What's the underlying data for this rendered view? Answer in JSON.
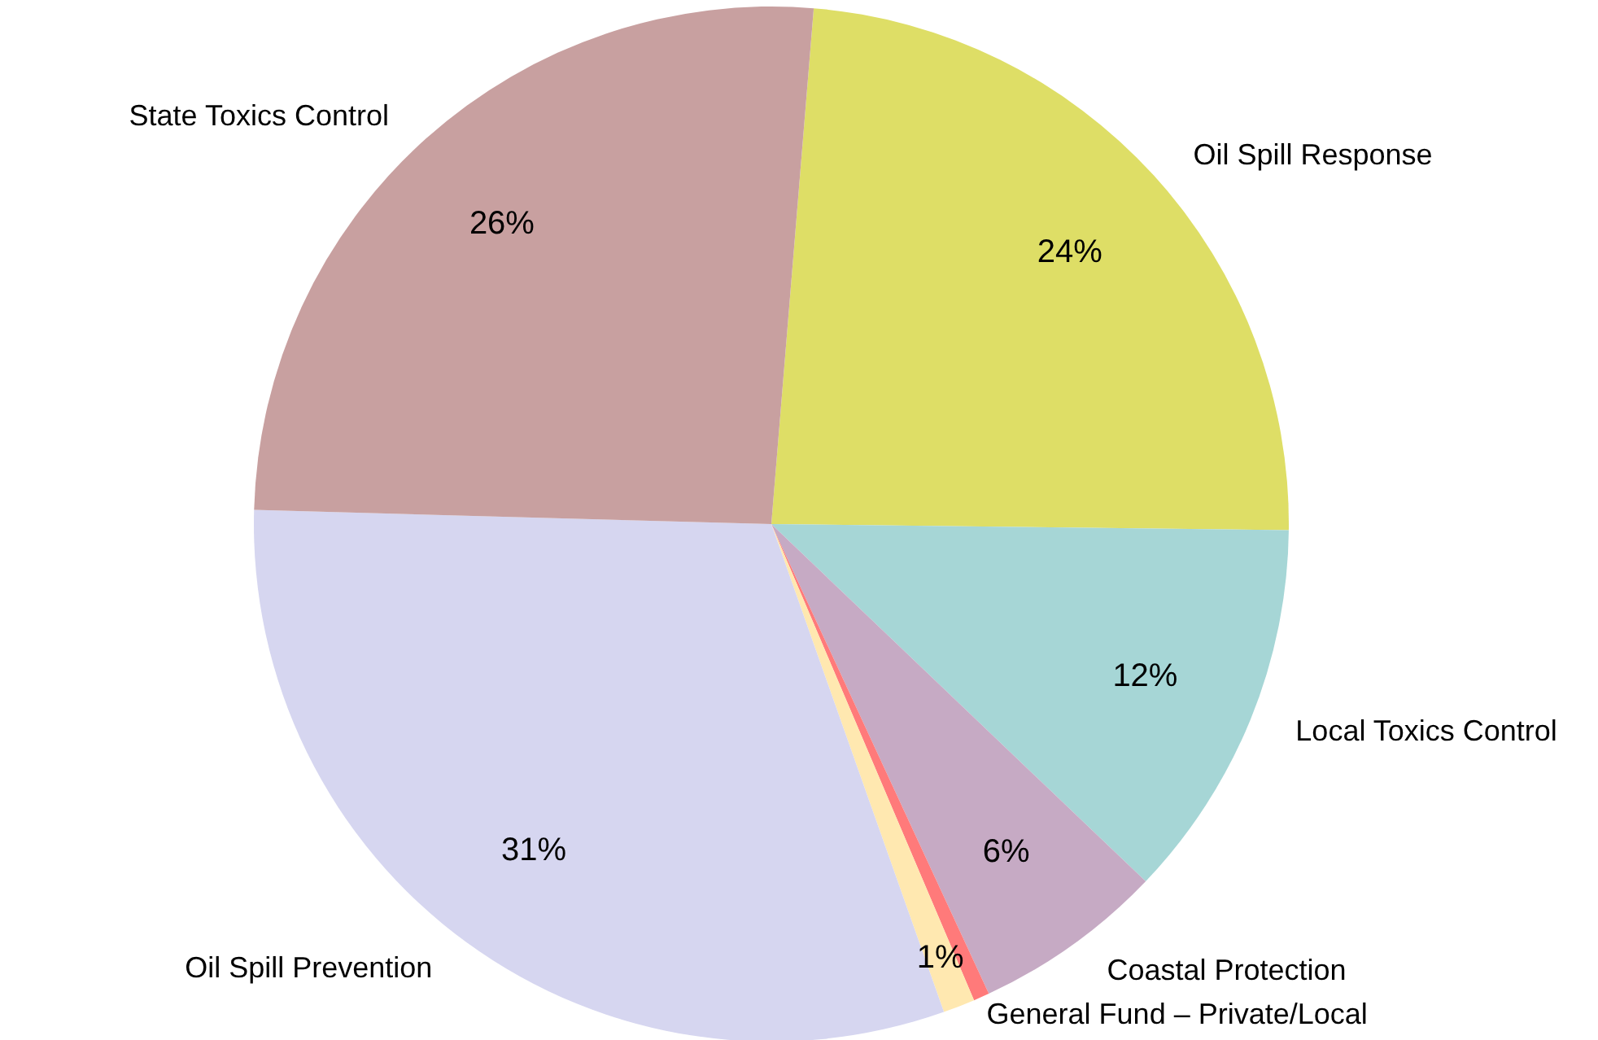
{
  "chart_data": {
    "type": "pie",
    "categories": [
      "Oil Spill Response",
      "Local Toxics Control",
      "Coastal Protection",
      null,
      "General Fund – Private/Local",
      "Oil Spill Prevention",
      "State Toxics Control"
    ],
    "values": [
      24,
      12,
      6,
      0.5,
      1,
      31,
      26
    ],
    "value_labels": [
      "24%",
      "12%",
      "6%",
      null,
      "1%",
      "31%",
      "26%"
    ],
    "colors": [
      "#dede66",
      "#a6d6d6",
      "#c6aac4",
      "#ff7a7a",
      "#ffe8b0",
      "#d6d6f0",
      "#c8a0a0"
    ]
  }
}
